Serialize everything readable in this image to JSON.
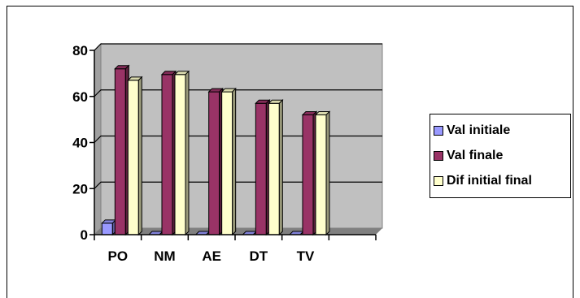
{
  "chart_data": {
    "type": "bar",
    "categories": [
      "PO",
      "NM",
      "AE",
      "DT",
      "TV",
      ""
    ],
    "series": [
      {
        "name": "Val initiale",
        "values": [
          5,
          0,
          0,
          0,
          0,
          null
        ]
      },
      {
        "name": "Val finale",
        "values": [
          72,
          69.5,
          62,
          57,
          52,
          null
        ]
      },
      {
        "name": "Dif initial final",
        "values": [
          67,
          69.5,
          62,
          57,
          52,
          null
        ]
      }
    ],
    "ylim": [
      0,
      80
    ],
    "yticks": [
      0,
      20,
      40,
      60,
      80
    ],
    "grid": true,
    "legend_position": "right",
    "plot_background": "#c0c0c0",
    "colors": {
      "Val initiale": "#9999ff",
      "Val finale": "#993366",
      "Dif initial final": "#ffffcc"
    },
    "title": "",
    "xlabel": "",
    "ylabel": ""
  }
}
